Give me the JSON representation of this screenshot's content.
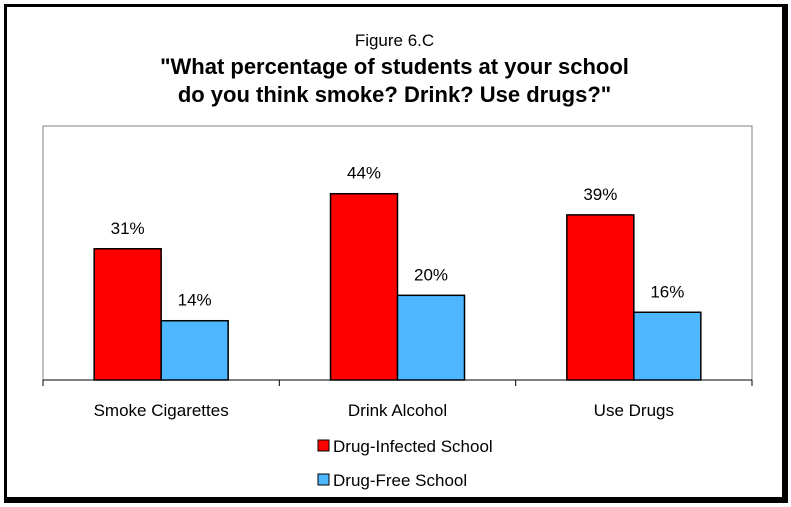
{
  "figure_label": "Figure 6.C",
  "title_line1": "\"What percentage of students at your school",
  "title_line2": "do you think smoke? Drink? Use drugs?\"",
  "colors": {
    "series1": "#ff0000",
    "series2": "#4db8ff"
  },
  "chart_data": {
    "type": "bar",
    "categories": [
      "Smoke Cigarettes",
      "Drink Alcohol",
      "Use Drugs"
    ],
    "series": [
      {
        "name": "Drug-Infected School",
        "values": [
          31,
          44,
          39
        ],
        "labels": [
          "31%",
          "44%",
          "39%"
        ]
      },
      {
        "name": "Drug-Free School",
        "values": [
          14,
          20,
          16
        ],
        "labels": [
          "14%",
          "20%",
          "16%"
        ]
      }
    ],
    "ylim": [
      0,
      60
    ],
    "grid": false,
    "legend_position": "bottom",
    "title": "\"What percentage of students at your school do you think smoke? Drink? Use drugs?\""
  }
}
